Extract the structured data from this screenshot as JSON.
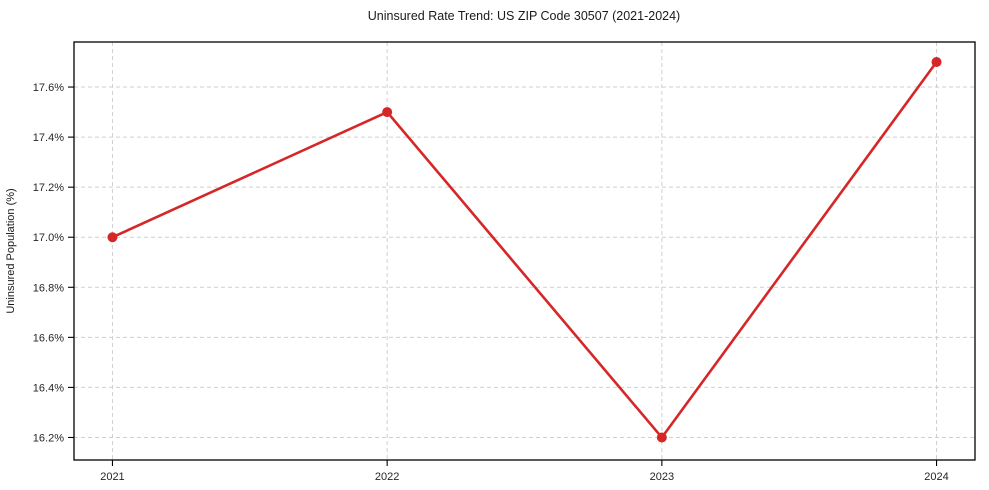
{
  "chart_data": {
    "type": "line",
    "title": "Uninsured Rate Trend: US ZIP Code 30507 (2021-2024)",
    "xlabel": "",
    "ylabel": "Uninsured Population (%)",
    "categories": [
      "2021",
      "2022",
      "2023",
      "2024"
    ],
    "x": [
      2021,
      2022,
      2023,
      2024
    ],
    "series": [
      {
        "name": "Uninsured rate",
        "values": [
          17.0,
          17.5,
          16.2,
          17.7
        ],
        "color": "#d62728",
        "marker": "circle"
      }
    ],
    "yticks": [
      16.2,
      16.4,
      16.6,
      16.8,
      17.0,
      17.2,
      17.4,
      17.6
    ],
    "ytick_labels": [
      "16.2%",
      "16.4%",
      "16.6%",
      "16.8%",
      "17.0%",
      "17.2%",
      "17.4%",
      "17.6%"
    ],
    "xlim": [
      2020.86,
      2024.14
    ],
    "ylim": [
      16.11,
      17.78
    ],
    "grid": true,
    "grid_color": "#cfcfcf",
    "background": "#ffffff",
    "legend": "none"
  }
}
